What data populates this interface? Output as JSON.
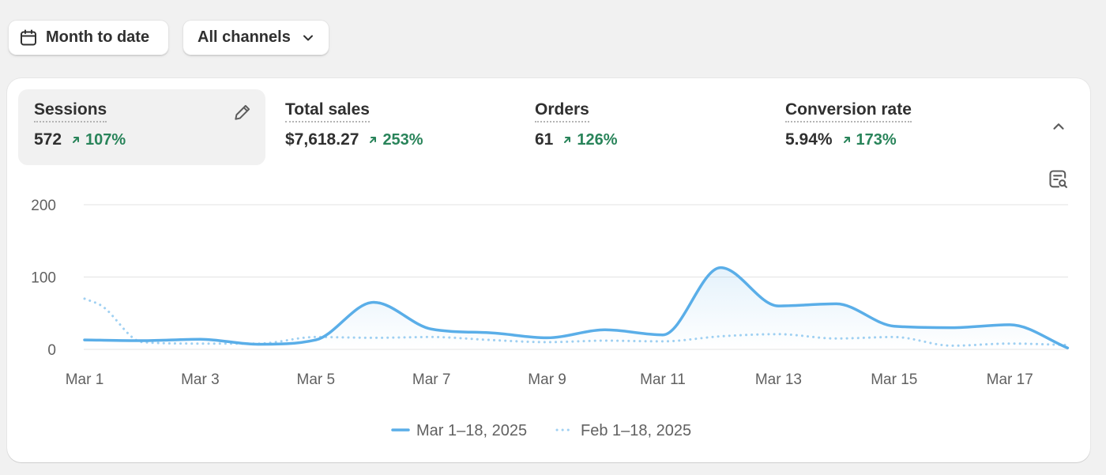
{
  "filters": {
    "date_range_label": "Month to date",
    "channel_label": "All channels"
  },
  "metrics": [
    {
      "label": "Sessions",
      "value": "572",
      "change": "107%",
      "active": true
    },
    {
      "label": "Total sales",
      "value": "$7,618.27",
      "change": "253%",
      "active": false
    },
    {
      "label": "Orders",
      "value": "61",
      "change": "126%",
      "active": false
    },
    {
      "label": "Conversion rate",
      "value": "5.94%",
      "change": "173%",
      "active": false
    }
  ],
  "colors": {
    "current_series": "#5aaee8",
    "previous_series": "#9fd0f2",
    "positive_change": "#29845a",
    "grid": "#e3e3e3"
  },
  "icons": [
    "calendar-icon",
    "chevron-down-icon",
    "pencil-icon",
    "chevron-up-icon",
    "insight-icon",
    "arrow-up-right-icon"
  ],
  "chart_data": {
    "type": "line",
    "x_ticks": [
      "Mar 1",
      "Mar 3",
      "Mar 5",
      "Mar 7",
      "Mar 9",
      "Mar 11",
      "Mar 13",
      "Mar 15",
      "Mar 17"
    ],
    "ylim": [
      0,
      200
    ],
    "y_ticks": [
      0,
      100,
      200
    ],
    "grid": true,
    "legend_position": "bottom-center",
    "series": [
      {
        "name": "Mar 1–18, 2025",
        "style": "solid",
        "x": [
          1,
          2,
          3,
          4,
          5,
          6,
          7,
          8,
          9,
          10,
          11,
          12,
          13,
          14,
          15,
          16,
          17,
          18
        ],
        "values": [
          13,
          12,
          14,
          7,
          13,
          65,
          28,
          23,
          16,
          27,
          20,
          113,
          60,
          63,
          32,
          30,
          34,
          2
        ]
      },
      {
        "name": "Feb 1–18, 2025",
        "style": "dotted",
        "x": [
          1,
          1.3,
          2,
          3,
          4,
          5,
          6,
          7,
          8,
          9,
          10,
          11,
          12,
          13,
          14,
          15,
          16,
          17,
          18
        ],
        "values": [
          70,
          60,
          10,
          8,
          8,
          17,
          16,
          17,
          13,
          10,
          12,
          11,
          18,
          21,
          15,
          17,
          5,
          8,
          6
        ]
      }
    ]
  }
}
